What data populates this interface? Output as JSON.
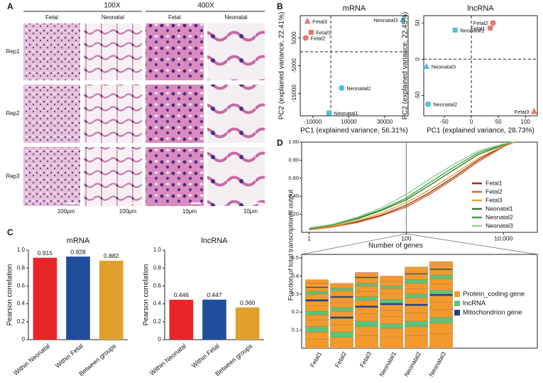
{
  "panel_labels": [
    "A",
    "B",
    "C",
    "D"
  ],
  "histology": {
    "magnifications": [
      "100X",
      "400X"
    ],
    "columns": [
      "Fetal",
      "Neonatal",
      "Fetal",
      "Neonatal"
    ],
    "rows": [
      "Rep1",
      "Rep2",
      "Rep3"
    ],
    "scale_bars": [
      "100μm",
      "100μm",
      "10μm",
      "10μm"
    ]
  },
  "chart_data": [
    {
      "type": "scatter",
      "title": "mRNA",
      "xlabel": "PC1 (explained variance, 56.31%)",
      "ylabel": "PC2 (explained variance, 22.41%)",
      "xlim": [
        -17000,
        43000
      ],
      "xticks": [
        -10000,
        10000,
        30000
      ],
      "ylim": [
        -23000,
        13000
      ],
      "yticks": [
        5000,
        -5000,
        -15000
      ],
      "zero_lines": true,
      "series": [
        {
          "name": "Fetal3",
          "color": "#e8736a",
          "marker": "triangle",
          "x": [
            -13000
          ],
          "values": [
            11000
          ]
        },
        {
          "name": "Fetal1",
          "color": "#e8736a",
          "marker": "square",
          "x": [
            -11000
          ],
          "values": [
            7000
          ]
        },
        {
          "name": "Fetal2",
          "color": "#e8736a",
          "marker": "circle",
          "x": [
            -14000
          ],
          "values": [
            5000
          ]
        },
        {
          "name": "Neonatal3",
          "color": "#4fc1d9",
          "marker": "triangle",
          "x": [
            40000
          ],
          "values": [
            11500
          ]
        },
        {
          "name": "Neonatal2",
          "color": "#4fc1d9",
          "marker": "circle",
          "x": [
            6000
          ],
          "values": [
            -13000
          ]
        },
        {
          "name": "Neonatal1",
          "color": "#4fc1d9",
          "marker": "square",
          "x": [
            -1000
          ],
          "values": [
            -22000
          ]
        }
      ]
    },
    {
      "type": "scatter",
      "title": "lncRNA",
      "xlabel": "PC1 (explained variance, 28.73%)",
      "ylabel": "PC2 (explained variance, 22.45%)",
      "xlim": [
        -88,
        122
      ],
      "xticks": [
        -50,
        0,
        50,
        100
      ],
      "ylim": [
        -78,
        60
      ],
      "yticks": [
        50,
        0,
        -50
      ],
      "zero_lines": true,
      "series": [
        {
          "name": "Fetal2",
          "color": "#e8736a",
          "marker": "circle",
          "x": [
            40
          ],
          "values": [
            50
          ]
        },
        {
          "name": "Fetal1",
          "color": "#e8736a",
          "marker": "square",
          "x": [
            35
          ],
          "values": [
            43
          ]
        },
        {
          "name": "Neonatal1",
          "color": "#4fc1d9",
          "marker": "square",
          "x": [
            -30
          ],
          "values": [
            40
          ]
        },
        {
          "name": "Neonatal3",
          "color": "#4fc1d9",
          "marker": "triangle",
          "x": [
            -83
          ],
          "values": [
            -10
          ]
        },
        {
          "name": "Neonatal2",
          "color": "#4fc1d9",
          "marker": "circle",
          "x": [
            -80
          ],
          "values": [
            -62
          ]
        },
        {
          "name": "Fetal3",
          "color": "#e8736a",
          "marker": "triangle",
          "x": [
            116
          ],
          "values": [
            -72
          ]
        }
      ]
    },
    {
      "type": "bar",
      "title": "mRNA",
      "ylabel": "Pearson correlation",
      "categories": [
        "Within Neonatal",
        "Within Fetal",
        "Between groups"
      ],
      "values": [
        0.915,
        0.928,
        0.882
      ],
      "value_labels": [
        "0.915",
        "0.928",
        "0.882"
      ],
      "colors": [
        "#e8262a",
        "#1f4e9c",
        "#e0a02e"
      ],
      "ylim": [
        0,
        1
      ],
      "yticks": [
        0,
        0.2,
        0.4,
        0.6,
        0.8,
        {
          "value": 1,
          "label": "1.0"
        }
      ]
    },
    {
      "type": "bar",
      "title": "lncRNA",
      "ylabel": "Pearson correlation",
      "categories": [
        "Within Neonatal",
        "Within Fetal",
        "Between groups"
      ],
      "values": [
        0.446,
        0.447,
        0.36
      ],
      "value_labels": [
        "0.446",
        "0.447",
        "0.360"
      ],
      "colors": [
        "#e8262a",
        "#1f4e9c",
        "#e0a02e"
      ],
      "ylim": [
        0,
        1
      ],
      "yticks": [
        0,
        0.2,
        0.4,
        0.6,
        0.8,
        {
          "value": 1,
          "label": "1.0"
        }
      ]
    },
    {
      "type": "line",
      "xlabel": "Number of genes",
      "ylabel": "Fraction of total transcriptional output",
      "log_x": true,
      "vline": 100,
      "xlim": [
        0.7,
        50000
      ],
      "xticks": [
        1,
        100,
        {
          "value": 10000,
          "label": "10,000"
        }
      ],
      "ylim": [
        0,
        1
      ],
      "yticks": [
        {
          "value": 0.2,
          "label": "0.20"
        },
        {
          "value": 0.4,
          "label": "0.40"
        },
        {
          "value": 0.6,
          "label": "0.60"
        },
        {
          "value": 0.8,
          "label": "0.80"
        },
        {
          "value": 1,
          "label": "1.00"
        }
      ],
      "x": [
        1,
        3,
        10,
        30,
        100,
        300,
        1000,
        3000,
        10000,
        17000
      ],
      "series": [
        {
          "name": "Fetal1",
          "color": "#8b3a1e",
          "values": [
            0.03,
            0.06,
            0.12,
            0.19,
            0.3,
            0.44,
            0.62,
            0.8,
            0.96,
            1.0
          ]
        },
        {
          "name": "Fetal2",
          "color": "#d9622b",
          "values": [
            0.03,
            0.06,
            0.11,
            0.18,
            0.28,
            0.42,
            0.6,
            0.78,
            0.95,
            1.0
          ]
        },
        {
          "name": "Fetal3",
          "color": "#f0a030",
          "values": [
            0.04,
            0.07,
            0.13,
            0.21,
            0.33,
            0.47,
            0.65,
            0.82,
            0.96,
            1.0
          ]
        },
        {
          "name": "Neonatal1",
          "color": "#2e7d32",
          "values": [
            0.04,
            0.08,
            0.15,
            0.24,
            0.36,
            0.52,
            0.7,
            0.86,
            0.97,
            1.0
          ]
        },
        {
          "name": "Neonatal2",
          "color": "#43a047",
          "values": [
            0.04,
            0.08,
            0.16,
            0.25,
            0.38,
            0.55,
            0.73,
            0.88,
            0.98,
            1.0
          ]
        },
        {
          "name": "Neonatal3",
          "color": "#8fd18f",
          "values": [
            0.05,
            0.09,
            0.17,
            0.27,
            0.42,
            0.59,
            0.76,
            0.9,
            0.98,
            1.0
          ]
        }
      ]
    },
    {
      "type": "stacked_bar",
      "categories": [
        "Fetal1",
        "Fetal2",
        "Fetal3",
        "Neonatal1",
        "Neonatal2",
        "Neonatal3"
      ],
      "ylim": [
        0,
        0.52
      ],
      "yticks": [
        0.1,
        0.2,
        0.3,
        0.4,
        0.5
      ],
      "series": [
        {
          "name": "Protein_coding gene",
          "color": "#f29a2e"
        },
        {
          "name": "lncRNA",
          "color": "#5cc47a"
        },
        {
          "name": "Mitochondrion gene",
          "color": "#1f3f8f"
        }
      ],
      "stacks": [
        [
          [
            0,
            0.05
          ],
          [
            0,
            0.04
          ],
          [
            1,
            0.03
          ],
          [
            0,
            0.035
          ],
          [
            0,
            0.03
          ],
          [
            1,
            0.02
          ],
          [
            0,
            0.03
          ],
          [
            0,
            0.025
          ],
          [
            2,
            0.01
          ],
          [
            0,
            0.03
          ],
          [
            1,
            0.015
          ],
          [
            0,
            0.02
          ],
          [
            2,
            0.005
          ],
          [
            0,
            0.02
          ],
          [
            0,
            0.02
          ]
        ],
        [
          [
            0,
            0.06
          ],
          [
            1,
            0.03
          ],
          [
            0,
            0.04
          ],
          [
            0,
            0.035
          ],
          [
            2,
            0.01
          ],
          [
            0,
            0.03
          ],
          [
            1,
            0.02
          ],
          [
            0,
            0.03
          ],
          [
            0,
            0.025
          ],
          [
            2,
            0.008
          ],
          [
            0,
            0.03
          ],
          [
            1,
            0.015
          ],
          [
            0,
            0.027
          ]
        ],
        [
          [
            0,
            0.07
          ],
          [
            0,
            0.05
          ],
          [
            1,
            0.03
          ],
          [
            0,
            0.04
          ],
          [
            0,
            0.035
          ],
          [
            2,
            0.01
          ],
          [
            0,
            0.03
          ],
          [
            1,
            0.02
          ],
          [
            0,
            0.03
          ],
          [
            0,
            0.03
          ],
          [
            1,
            0.015
          ],
          [
            0,
            0.03
          ],
          [
            2,
            0.005
          ],
          [
            0,
            0.025
          ]
        ],
        [
          [
            0,
            0.06
          ],
          [
            0,
            0.05
          ],
          [
            1,
            0.025
          ],
          [
            0,
            0.04
          ],
          [
            0,
            0.035
          ],
          [
            0,
            0.03
          ],
          [
            2,
            0.01
          ],
          [
            1,
            0.02
          ],
          [
            0,
            0.03
          ],
          [
            0,
            0.03
          ],
          [
            1,
            0.015
          ],
          [
            0,
            0.025
          ],
          [
            0,
            0.03
          ]
        ],
        [
          [
            0,
            0.07
          ],
          [
            0,
            0.05
          ],
          [
            1,
            0.03
          ],
          [
            0,
            0.045
          ],
          [
            0,
            0.04
          ],
          [
            2,
            0.01
          ],
          [
            0,
            0.035
          ],
          [
            1,
            0.02
          ],
          [
            0,
            0.03
          ],
          [
            0,
            0.03
          ],
          [
            1,
            0.02
          ],
          [
            0,
            0.03
          ],
          [
            2,
            0.005
          ],
          [
            0,
            0.035
          ]
        ],
        [
          [
            0,
            0.08
          ],
          [
            0,
            0.06
          ],
          [
            1,
            0.03
          ],
          [
            0,
            0.045
          ],
          [
            0,
            0.04
          ],
          [
            0,
            0.035
          ],
          [
            2,
            0.01
          ],
          [
            1,
            0.02
          ],
          [
            0,
            0.035
          ],
          [
            0,
            0.03
          ],
          [
            1,
            0.02
          ],
          [
            0,
            0.03
          ],
          [
            2,
            0.005
          ],
          [
            0,
            0.04
          ]
        ]
      ]
    }
  ]
}
